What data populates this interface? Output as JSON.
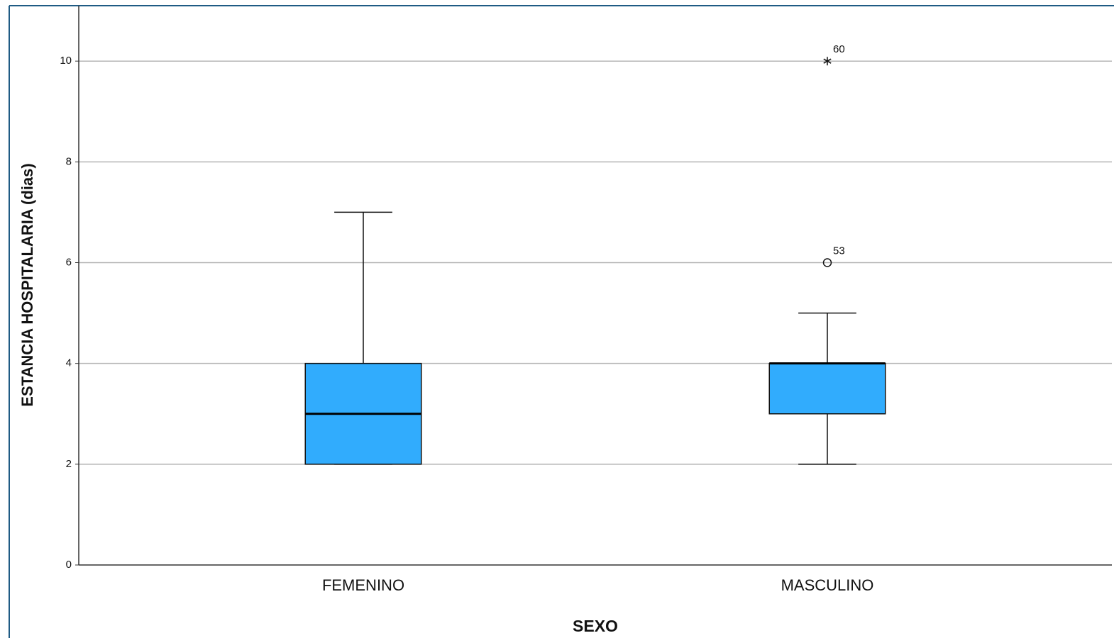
{
  "chart_data": {
    "type": "box",
    "x_label": "SEXO",
    "y_label": "ESTANCIA HOSPITALARIA (dias)",
    "categories": [
      "FEMENINO",
      "MASCULINO"
    ],
    "color": "#31acfd",
    "boxes": [
      {
        "min": 2,
        "q1": 2,
        "median": 3,
        "q3": 4,
        "max": 7,
        "outliers": []
      },
      {
        "min": 2,
        "q1": 3,
        "median": 4,
        "q3": 4,
        "max": 5,
        "outliers": [
          {
            "value": 6,
            "label": "53",
            "marker": "circle"
          },
          {
            "value": 10,
            "label": "60",
            "marker": "star"
          }
        ]
      }
    ],
    "ylim": [
      0,
      11.1
    ],
    "yticks": [
      0,
      2,
      4,
      6,
      8,
      10
    ],
    "grid": true
  }
}
